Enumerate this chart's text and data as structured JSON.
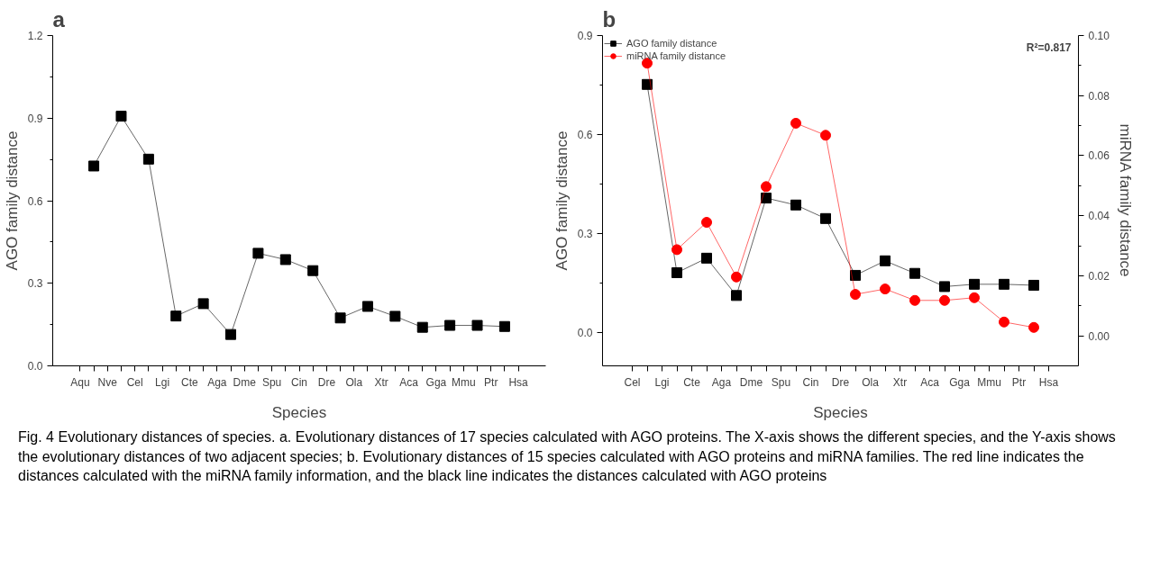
{
  "chart_data": [
    {
      "type": "line",
      "title": "a",
      "xlabel": "Species",
      "ylabel": "AGO family distance",
      "ylim": [
        0,
        1.2
      ],
      "categories": [
        "Aqu",
        null,
        "Nve",
        null,
        "Cel",
        null,
        "Lgi",
        null,
        "Cte",
        null,
        "Aga",
        null,
        "Dme",
        null,
        "Spu",
        null,
        "Cin",
        null,
        "Dre",
        null,
        "Ola",
        null,
        "Xtr",
        null,
        "Aca",
        null,
        "Gga",
        null,
        "Mmu",
        null,
        "Ptr",
        null,
        "Hsa"
      ],
      "yticks": [
        {
          "value": 0,
          "label": "0.0"
        },
        {
          "value": 0.3,
          "label": "0.3"
        },
        {
          "value": 0.6,
          "label": "0.6"
        },
        {
          "value": 0.9,
          "label": "0.9"
        },
        {
          "value": 1.2,
          "label": "1.2"
        }
      ],
      "grid": false,
      "legend": false,
      "series": [
        {
          "color": "#000000",
          "marker": "square",
          "values": [
            null,
            0.726,
            null,
            0.907,
            null,
            0.751,
            null,
            0.181,
            null,
            0.226,
            null,
            0.114,
            null,
            0.409,
            null,
            0.386,
            null,
            0.346,
            null,
            0.174,
            null,
            0.216,
            null,
            0.18,
            null,
            0.14,
            null,
            0.147,
            null,
            0.147,
            null,
            0.143,
            null
          ]
        }
      ]
    },
    {
      "type": "line",
      "title": "b",
      "xlabel": "Species",
      "ylabel": "AGO family distance",
      "y2label": "miRNA family distance",
      "ylim": [
        -0.1,
        0.9
      ],
      "y2lim": [
        -0.01,
        0.1
      ],
      "categories": [
        "Cel",
        null,
        "Lgi",
        null,
        "Cte",
        null,
        "Aga",
        null,
        "Dme",
        null,
        "Spu",
        null,
        "Cin",
        null,
        "Dre",
        null,
        "Ola",
        null,
        "Xtr",
        null,
        "Aca",
        null,
        "Gga",
        null,
        "Mmu",
        null,
        "Ptr",
        null,
        "Hsa"
      ],
      "yticks": [
        {
          "value": 0,
          "label": "0.0"
        },
        {
          "value": 0.3,
          "label": "0.3"
        },
        {
          "value": 0.6,
          "label": "0.6"
        },
        {
          "value": 0.9,
          "label": "0.9"
        }
      ],
      "y2ticks": [
        {
          "value": 0,
          "label": "0.00"
        },
        {
          "value": 0.02,
          "label": "0.02"
        },
        {
          "value": 0.04,
          "label": "0.04"
        },
        {
          "value": 0.06,
          "label": "0.06"
        },
        {
          "value": 0.08,
          "label": "0.08"
        },
        {
          "value": 0.1,
          "label": "0.10"
        }
      ],
      "grid": false,
      "legend": "top left",
      "annotations": [
        "R²=0.817",
        "Fig. 4 Evolutionary distances of species. a. Evolutionary distances of 17 species calculated with AGO proteins. The X-axis shows the different species, and the Y-axis shows the evolutionary distances of two adjacent species; b. Evolutionary distances of 15 species calculated with AGO proteins and miRNA families. The red line indicates the distances calculated with the miRNA family information, and the black line indicates the distances calculated with AGO proteins"
      ],
      "series": [
        {
          "name": "AGO family distance",
          "color": "#000000",
          "marker": "square",
          "values": [
            null,
            0.752,
            null,
            0.182,
            null,
            0.226,
            null,
            0.113,
            null,
            0.408,
            null,
            0.387,
            null,
            0.346,
            null,
            0.174,
            null,
            0.218,
            null,
            0.18,
            null,
            0.14,
            null,
            0.147,
            null,
            0.147,
            null,
            0.144,
            null
          ]
        },
        {
          "name": "miRNA family distance",
          "color": "#ff0000",
          "marker": "circle",
          "axis": "y2",
          "values": [
            null,
            0.0908,
            null,
            0.0287,
            null,
            0.0378,
            null,
            0.0196,
            null,
            0.0497,
            null,
            0.0708,
            null,
            0.0668,
            null,
            0.0138,
            null,
            0.0156,
            null,
            0.0118,
            null,
            0.0118,
            null,
            0.0127,
            null,
            0.0046,
            null,
            0.0028,
            null
          ]
        }
      ]
    }
  ]
}
